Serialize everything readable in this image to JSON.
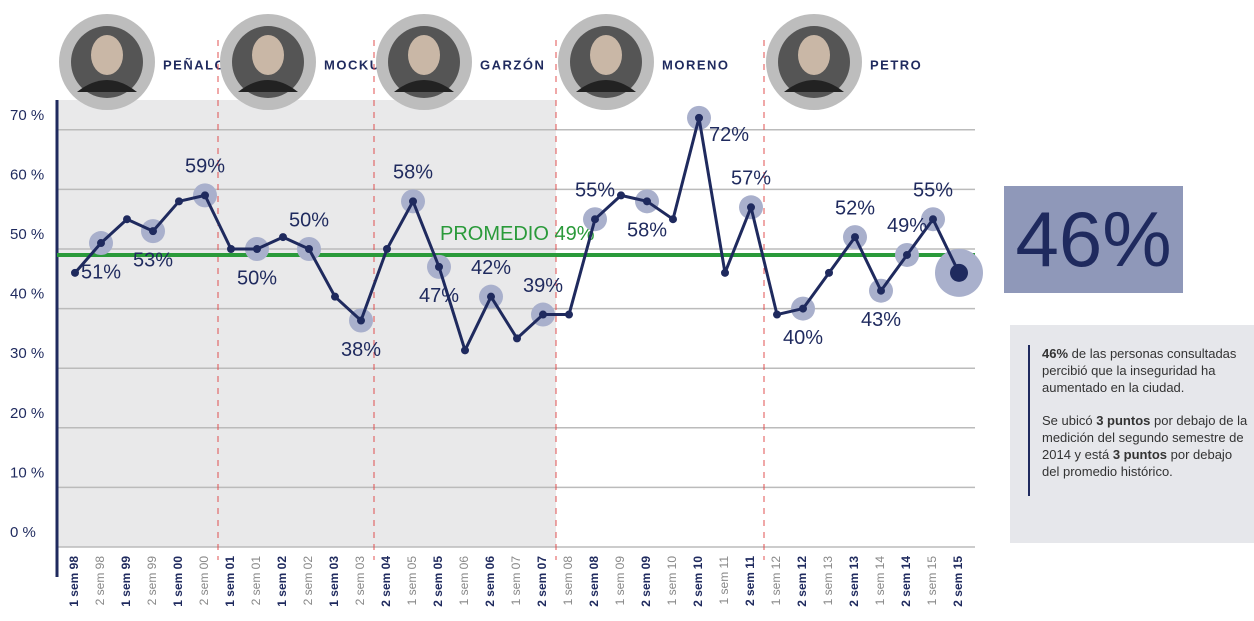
{
  "chart_data": {
    "type": "line",
    "categories": [
      "1 sem 98",
      "2 sem 98",
      "1 sem 99",
      "2 sem 99",
      "1 sem 00",
      "2 sem 00",
      "1 sem 01",
      "2 sem 01",
      "1 sem 02",
      "2 sem 02",
      "1 sem 03",
      "2 sem 03",
      "2 sem 04",
      "1 sem 05",
      "2 sem 05",
      "1 sem 06",
      "2 sem 06",
      "1 sem 07",
      "2 sem 07",
      "1 sem 08",
      "2 sem 08",
      "1 sem 09",
      "2 sem 09",
      "1 sem 10",
      "2 sem 10",
      "1 sem 11",
      "2 sem 11",
      "1 sem 12",
      "2 sem 12",
      "1 sem 13",
      "2 sem 13",
      "1 sem 14",
      "2 sem 14",
      "1 sem 15",
      "2 sem 15"
    ],
    "series": [
      {
        "color": "#1f2a5e",
        "values": [
          46,
          51,
          55,
          53,
          58,
          59,
          50,
          50,
          52,
          50,
          42,
          38,
          50,
          58,
          47,
          33,
          42,
          35,
          39,
          39,
          55,
          59,
          58,
          55,
          72,
          46,
          57,
          39,
          40,
          46,
          52,
          43,
          49,
          55,
          46
        ],
        "value_labels": [
          null,
          "51%",
          null,
          "53%",
          null,
          "59%",
          null,
          "50%",
          null,
          "50%",
          null,
          "38%",
          null,
          "58%",
          "47%",
          null,
          "42%",
          null,
          "39%",
          null,
          "55%",
          null,
          "58%",
          null,
          "72%",
          null,
          "57%",
          null,
          "40%",
          null,
          "52%",
          "43%",
          "49%",
          "55%",
          "46%"
        ]
      }
    ],
    "ylim": [
      0,
      75
    ],
    "yticks": [
      {
        "value": 0,
        "label": "0 %"
      },
      {
        "value": 10,
        "label": "10 %"
      },
      {
        "value": 20,
        "label": "20 %"
      },
      {
        "value": 30,
        "label": "30 %"
      },
      {
        "value": 40,
        "label": "40 %"
      },
      {
        "value": 50,
        "label": "50 %"
      },
      {
        "value": 60,
        "label": "60 %"
      },
      {
        "value": 70,
        "label": "70 %"
      }
    ],
    "grid": true,
    "average": {
      "value": 49,
      "label": "PROMEDIO 49%",
      "color": "#2a9a3a"
    },
    "periods": [
      {
        "name": "PEÑALOSA",
        "from": "1 sem 98"
      },
      {
        "name": "MOCKUS",
        "from": "1 sem 01"
      },
      {
        "name": "GARZÓN",
        "from": "2 sem 04"
      },
      {
        "name": "MORENO",
        "from": "1 sem 08"
      },
      {
        "name": "PETRO",
        "from": "1 sem 12"
      }
    ]
  },
  "note": {
    "paragraphs": [
      [
        {
          "text": "46%",
          "bold": true
        },
        {
          "text": " de las personas consultadas percibió que la inseguridad ha aumentado en la ciudad.",
          "bold": false
        }
      ],
      [
        {
          "text": "Se ubicó ",
          "bold": false
        },
        {
          "text": "3 puntos",
          "bold": true
        },
        {
          "text": " por debajo de la medición del segundo semestre de 2014 y está ",
          "bold": false
        },
        {
          "text": "3 puntos",
          "bold": true
        },
        {
          "text": " por debajo del promedio histórico.",
          "bold": false
        }
      ]
    ]
  }
}
